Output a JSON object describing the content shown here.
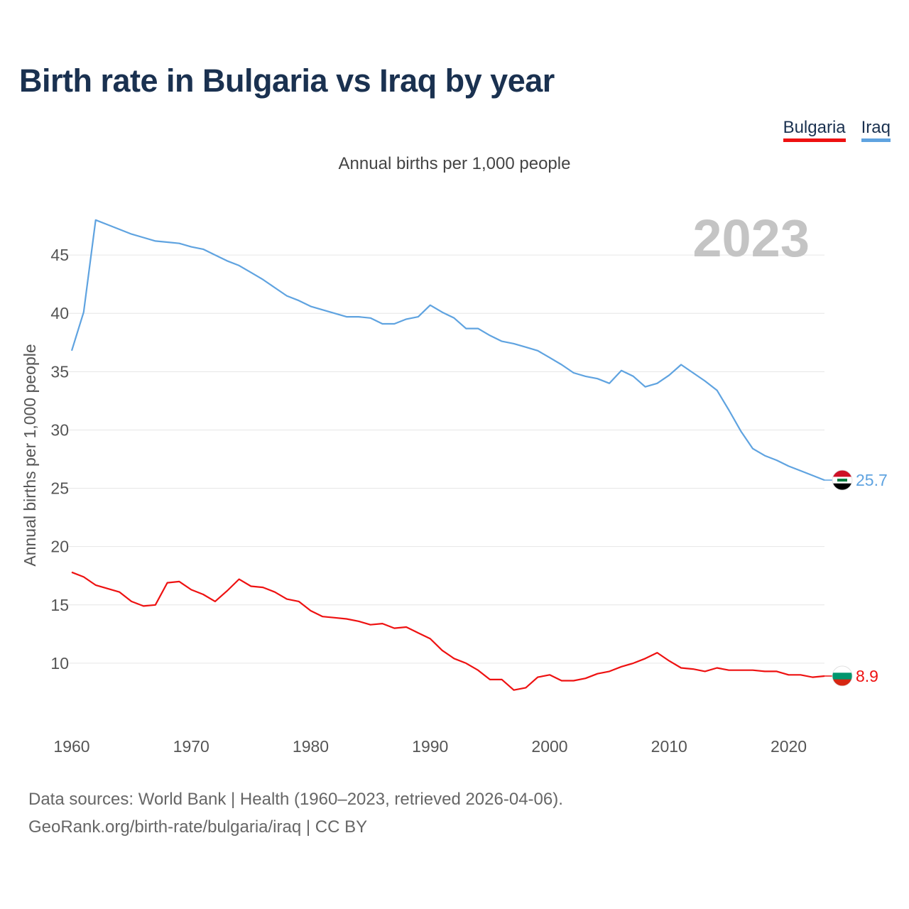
{
  "title": "Birth rate in Bulgaria vs Iraq by year",
  "subtitle": "Annual births per 1,000 people",
  "legend": {
    "bulgaria": "Bulgaria",
    "iraq": "Iraq"
  },
  "footer": {
    "line1": "Data sources: World Bank | Health (1960–2023, retrieved 2026-04-06).",
    "line2": "GeoRank.org/birth-rate/bulgaria/iraq | CC BY"
  },
  "colors": {
    "bulgaria": "#ee1111",
    "iraq": "#5fa3e0",
    "title": "#1a3150",
    "year_watermark": "#c4c4c4"
  },
  "chart_data": {
    "type": "line",
    "title": "Birth rate in Bulgaria vs Iraq by year",
    "ylabel": "Annual births per 1,000 people",
    "xlabel": "",
    "year_label": "2023",
    "xlim": [
      1960,
      2023
    ],
    "ylim": [
      5,
      50
    ],
    "x_ticks": [
      1960,
      1970,
      1980,
      1990,
      2000,
      2010,
      2020
    ],
    "y_ticks": [
      10,
      15,
      20,
      25,
      30,
      35,
      40,
      45
    ],
    "grid": true,
    "x": [
      1960,
      1961,
      1962,
      1963,
      1964,
      1965,
      1966,
      1967,
      1968,
      1969,
      1970,
      1971,
      1972,
      1973,
      1974,
      1975,
      1976,
      1977,
      1978,
      1979,
      1980,
      1981,
      1982,
      1983,
      1984,
      1985,
      1986,
      1987,
      1988,
      1989,
      1990,
      1991,
      1992,
      1993,
      1994,
      1995,
      1996,
      1997,
      1998,
      1999,
      2000,
      2001,
      2002,
      2003,
      2004,
      2005,
      2006,
      2007,
      2008,
      2009,
      2010,
      2011,
      2012,
      2013,
      2014,
      2015,
      2016,
      2017,
      2018,
      2019,
      2020,
      2021,
      2022,
      2023
    ],
    "series": [
      {
        "name": "Iraq",
        "color": "#5fa3e0",
        "end_label": "25.7",
        "values": [
          36.8,
          40.1,
          48.0,
          47.6,
          47.2,
          46.8,
          46.5,
          46.2,
          46.1,
          46.0,
          45.7,
          45.5,
          45.0,
          44.5,
          44.1,
          43.5,
          42.9,
          42.2,
          41.5,
          41.1,
          40.6,
          40.3,
          40.0,
          39.7,
          39.7,
          39.6,
          39.1,
          39.1,
          39.5,
          39.7,
          40.7,
          40.1,
          39.6,
          38.7,
          38.7,
          38.1,
          37.6,
          37.4,
          37.1,
          36.8,
          36.2,
          35.6,
          34.9,
          34.6,
          34.4,
          34.0,
          35.1,
          34.6,
          33.7,
          34.0,
          34.7,
          35.6,
          34.9,
          34.2,
          33.4,
          31.7,
          29.9,
          28.4,
          27.8,
          27.4,
          26.9,
          26.5,
          26.1,
          25.7
        ]
      },
      {
        "name": "Bulgaria",
        "color": "#ee1111",
        "end_label": "8.9",
        "values": [
          17.8,
          17.4,
          16.7,
          16.4,
          16.1,
          15.3,
          14.9,
          15.0,
          16.9,
          17.0,
          16.3,
          15.9,
          15.3,
          16.2,
          17.2,
          16.6,
          16.5,
          16.1,
          15.5,
          15.3,
          14.5,
          14.0,
          13.9,
          13.8,
          13.6,
          13.3,
          13.4,
          13.0,
          13.1,
          12.6,
          12.1,
          11.1,
          10.4,
          10.0,
          9.4,
          8.6,
          8.6,
          7.7,
          7.9,
          8.8,
          9.0,
          8.5,
          8.5,
          8.7,
          9.1,
          9.3,
          9.7,
          10.0,
          10.4,
          10.9,
          10.2,
          9.6,
          9.5,
          9.3,
          9.6,
          9.4,
          9.4,
          9.4,
          9.3,
          9.3,
          9.0,
          9.0,
          8.8,
          8.9
        ]
      }
    ]
  }
}
